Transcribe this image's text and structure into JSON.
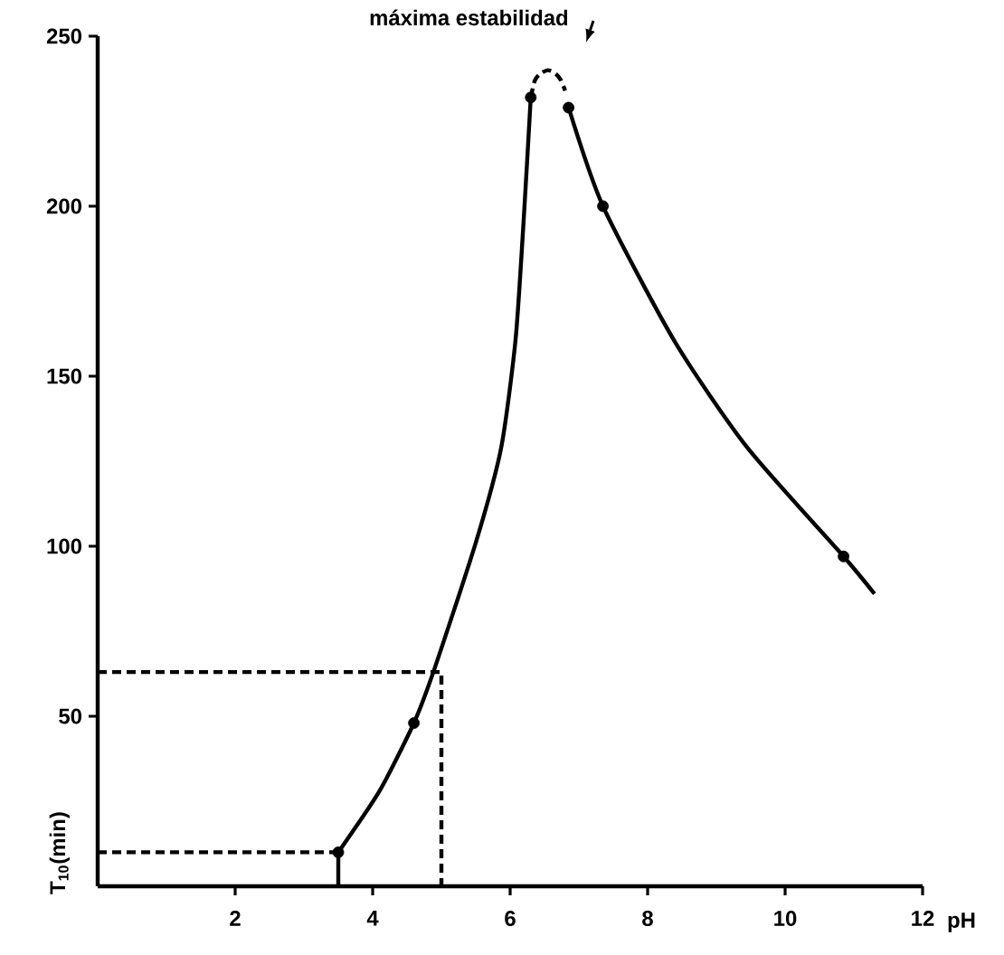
{
  "chart_data": {
    "type": "line",
    "xlabel": "pH",
    "ylabel": "T$_{10}$(min)",
    "xlim": [
      0,
      12
    ],
    "ylim": [
      0,
      250
    ],
    "xticks": [
      2,
      4,
      6,
      8,
      10,
      12
    ],
    "yticks": [
      50,
      100,
      150,
      200,
      250
    ],
    "annotations": [
      "máxima estabilidad"
    ],
    "series": [
      {
        "color": "#000000",
        "line_style": "solid",
        "marker": "none",
        "x": [
          3.5,
          4.1,
          4.6,
          4.9,
          5.5,
          5.87,
          6.08,
          6.2,
          6.3
        ],
        "values": [
          10,
          28,
          48,
          64,
          101,
          129,
          161,
          197,
          232
        ]
      },
      {
        "color": "#000000",
        "line_style": "solid",
        "marker": "none",
        "x": [
          6.85,
          7.35,
          8.4,
          9.45,
          10.85,
          11.3
        ],
        "values": [
          229,
          200,
          160,
          129,
          97,
          86
        ]
      },
      {
        "color": "#000000",
        "line_style": "dashed",
        "marker": "none",
        "x": [
          6.3,
          6.36,
          6.44,
          6.55,
          6.66,
          6.74,
          6.8
        ],
        "values": [
          232,
          237,
          239,
          240,
          239,
          237,
          234
        ]
      },
      {
        "color": "#000000",
        "line_style": "dashed",
        "marker": "none",
        "x": [
          0,
          3.5
        ],
        "values": [
          10,
          10
        ]
      },
      {
        "color": "#000000",
        "line_style": "dashed",
        "marker": "none",
        "x": [
          0,
          5,
          5
        ],
        "values": [
          63,
          63,
          0
        ]
      },
      {
        "color": "#000000",
        "line_style": "solid",
        "marker": "none",
        "x": [
          3.5,
          3.5
        ],
        "values": [
          0,
          10
        ]
      },
      {
        "type": "scatter",
        "color": "#000000",
        "marker": "circle",
        "x": [
          3.5,
          4.6,
          6.3,
          6.85,
          7.35,
          10.85
        ],
        "values": [
          10,
          48,
          232,
          229,
          200,
          97
        ]
      }
    ]
  }
}
